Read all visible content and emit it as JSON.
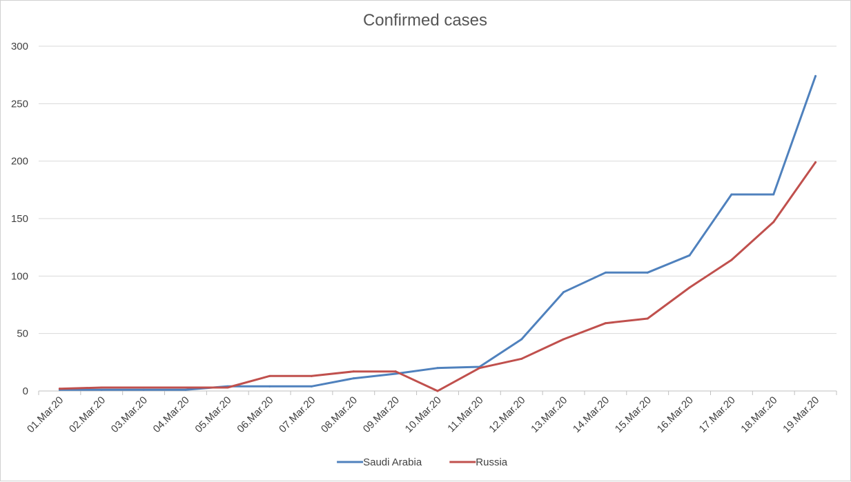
{
  "chart_data": {
    "type": "line",
    "title": "Confirmed cases",
    "xlabel": "",
    "ylabel": "",
    "categories": [
      "01.Mar.20",
      "02.Mar.20",
      "03.Mar.20",
      "04.Mar.20",
      "05.Mar.20",
      "06.Mar.20",
      "07.Mar.20",
      "08.Mar.20",
      "09.Mar.20",
      "10.Mar.20",
      "11.Mar.20",
      "12.Mar.20",
      "13.Mar.20",
      "14.Mar.20",
      "15.Mar.20",
      "16.Mar.20",
      "17.Mar.20",
      "18.Mar.20",
      "19.Mar.20"
    ],
    "series": [
      {
        "name": "Saudi Arabia",
        "color": "#4f81bd",
        "values": [
          1,
          1,
          1,
          1,
          4,
          4,
          4,
          11,
          15,
          20,
          21,
          45,
          86,
          103,
          103,
          118,
          171,
          171,
          274
        ]
      },
      {
        "name": "Russia",
        "color": "#c0504d",
        "values": [
          2,
          3,
          3,
          3,
          3,
          13,
          13,
          17,
          17,
          0,
          20,
          28,
          45,
          59,
          63,
          90,
          114,
          147,
          199
        ]
      }
    ],
    "yticks": [
      0,
      50,
      100,
      150,
      200,
      250,
      300
    ],
    "ylim": [
      0,
      300
    ],
    "grid": true,
    "legend": "bottom"
  }
}
